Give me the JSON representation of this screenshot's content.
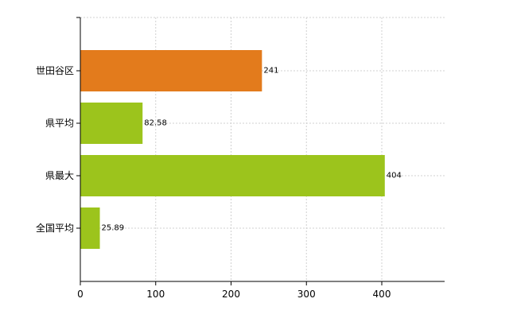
{
  "chart_data": {
    "type": "bar",
    "orientation": "horizontal",
    "categories": [
      "世田谷区",
      "県平均",
      "県最大",
      "全国平均"
    ],
    "values": [
      241,
      82.58,
      404,
      25.89
    ],
    "value_labels": [
      "241",
      "82.58",
      "404",
      "25.89"
    ],
    "colors": [
      "#e37b1c",
      "#9cc41c",
      "#9cc41c",
      "#9cc41c"
    ],
    "xlim": [
      0,
      480
    ],
    "xticks": [
      0,
      100,
      200,
      300,
      400
    ],
    "grid": true,
    "title": "",
    "xlabel": "",
    "ylabel": ""
  }
}
